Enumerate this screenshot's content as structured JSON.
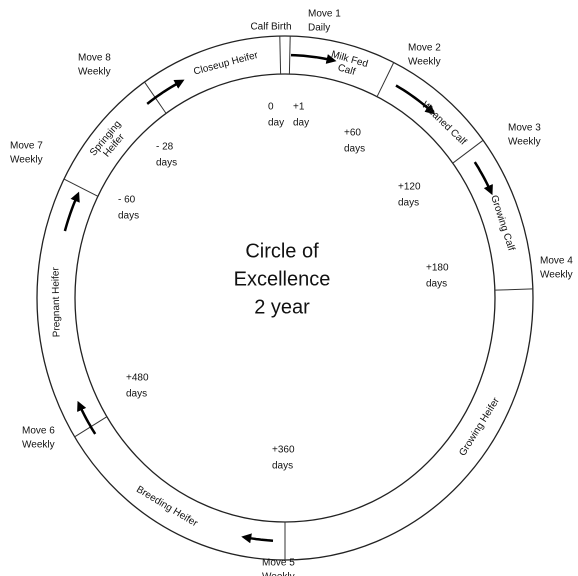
{
  "calf_birth": "Calf Birth",
  "title": [
    "Circle of",
    "Excellence",
    "2 year"
  ],
  "stages": [
    {
      "lines": [
        "Milk Fed",
        "Calf"
      ]
    },
    {
      "lines": [
        "Weaned Calf"
      ]
    },
    {
      "lines": [
        "Growing Calf"
      ]
    },
    {
      "lines": [
        "Growing Heifer"
      ]
    },
    {
      "lines": [
        "Breeding Heifer"
      ]
    },
    {
      "lines": [
        "Pregnant Heifer"
      ]
    },
    {
      "lines": [
        "Springing",
        "Heifer"
      ]
    },
    {
      "lines": [
        "Closeup Heifer"
      ]
    }
  ],
  "moves": [
    {
      "name": "Move 1",
      "frequency": "Daily"
    },
    {
      "name": "Move 2",
      "frequency": "Weekly"
    },
    {
      "name": "Move 3",
      "frequency": "Weekly"
    },
    {
      "name": "Move 4",
      "frequency": "Weekly"
    },
    {
      "name": "Move 5",
      "frequency": "Weekly"
    },
    {
      "name": "Move 6",
      "frequency": "Weekly"
    },
    {
      "name": "Move 7",
      "frequency": "Weekly"
    },
    {
      "name": "Move 8",
      "frequency": "Weekly"
    }
  ],
  "days": [
    {
      "value": "0",
      "unit": "day"
    },
    {
      "value": "+1",
      "unit": "day"
    },
    {
      "value": "+60",
      "unit": "days"
    },
    {
      "value": "+120",
      "unit": "days"
    },
    {
      "value": "+180",
      "unit": "days"
    },
    {
      "value": "+360",
      "unit": "days"
    },
    {
      "value": "+480",
      "unit": "days"
    },
    {
      "value": "- 60",
      "unit": "days"
    },
    {
      "value": "- 28",
      "unit": "days"
    }
  ]
}
